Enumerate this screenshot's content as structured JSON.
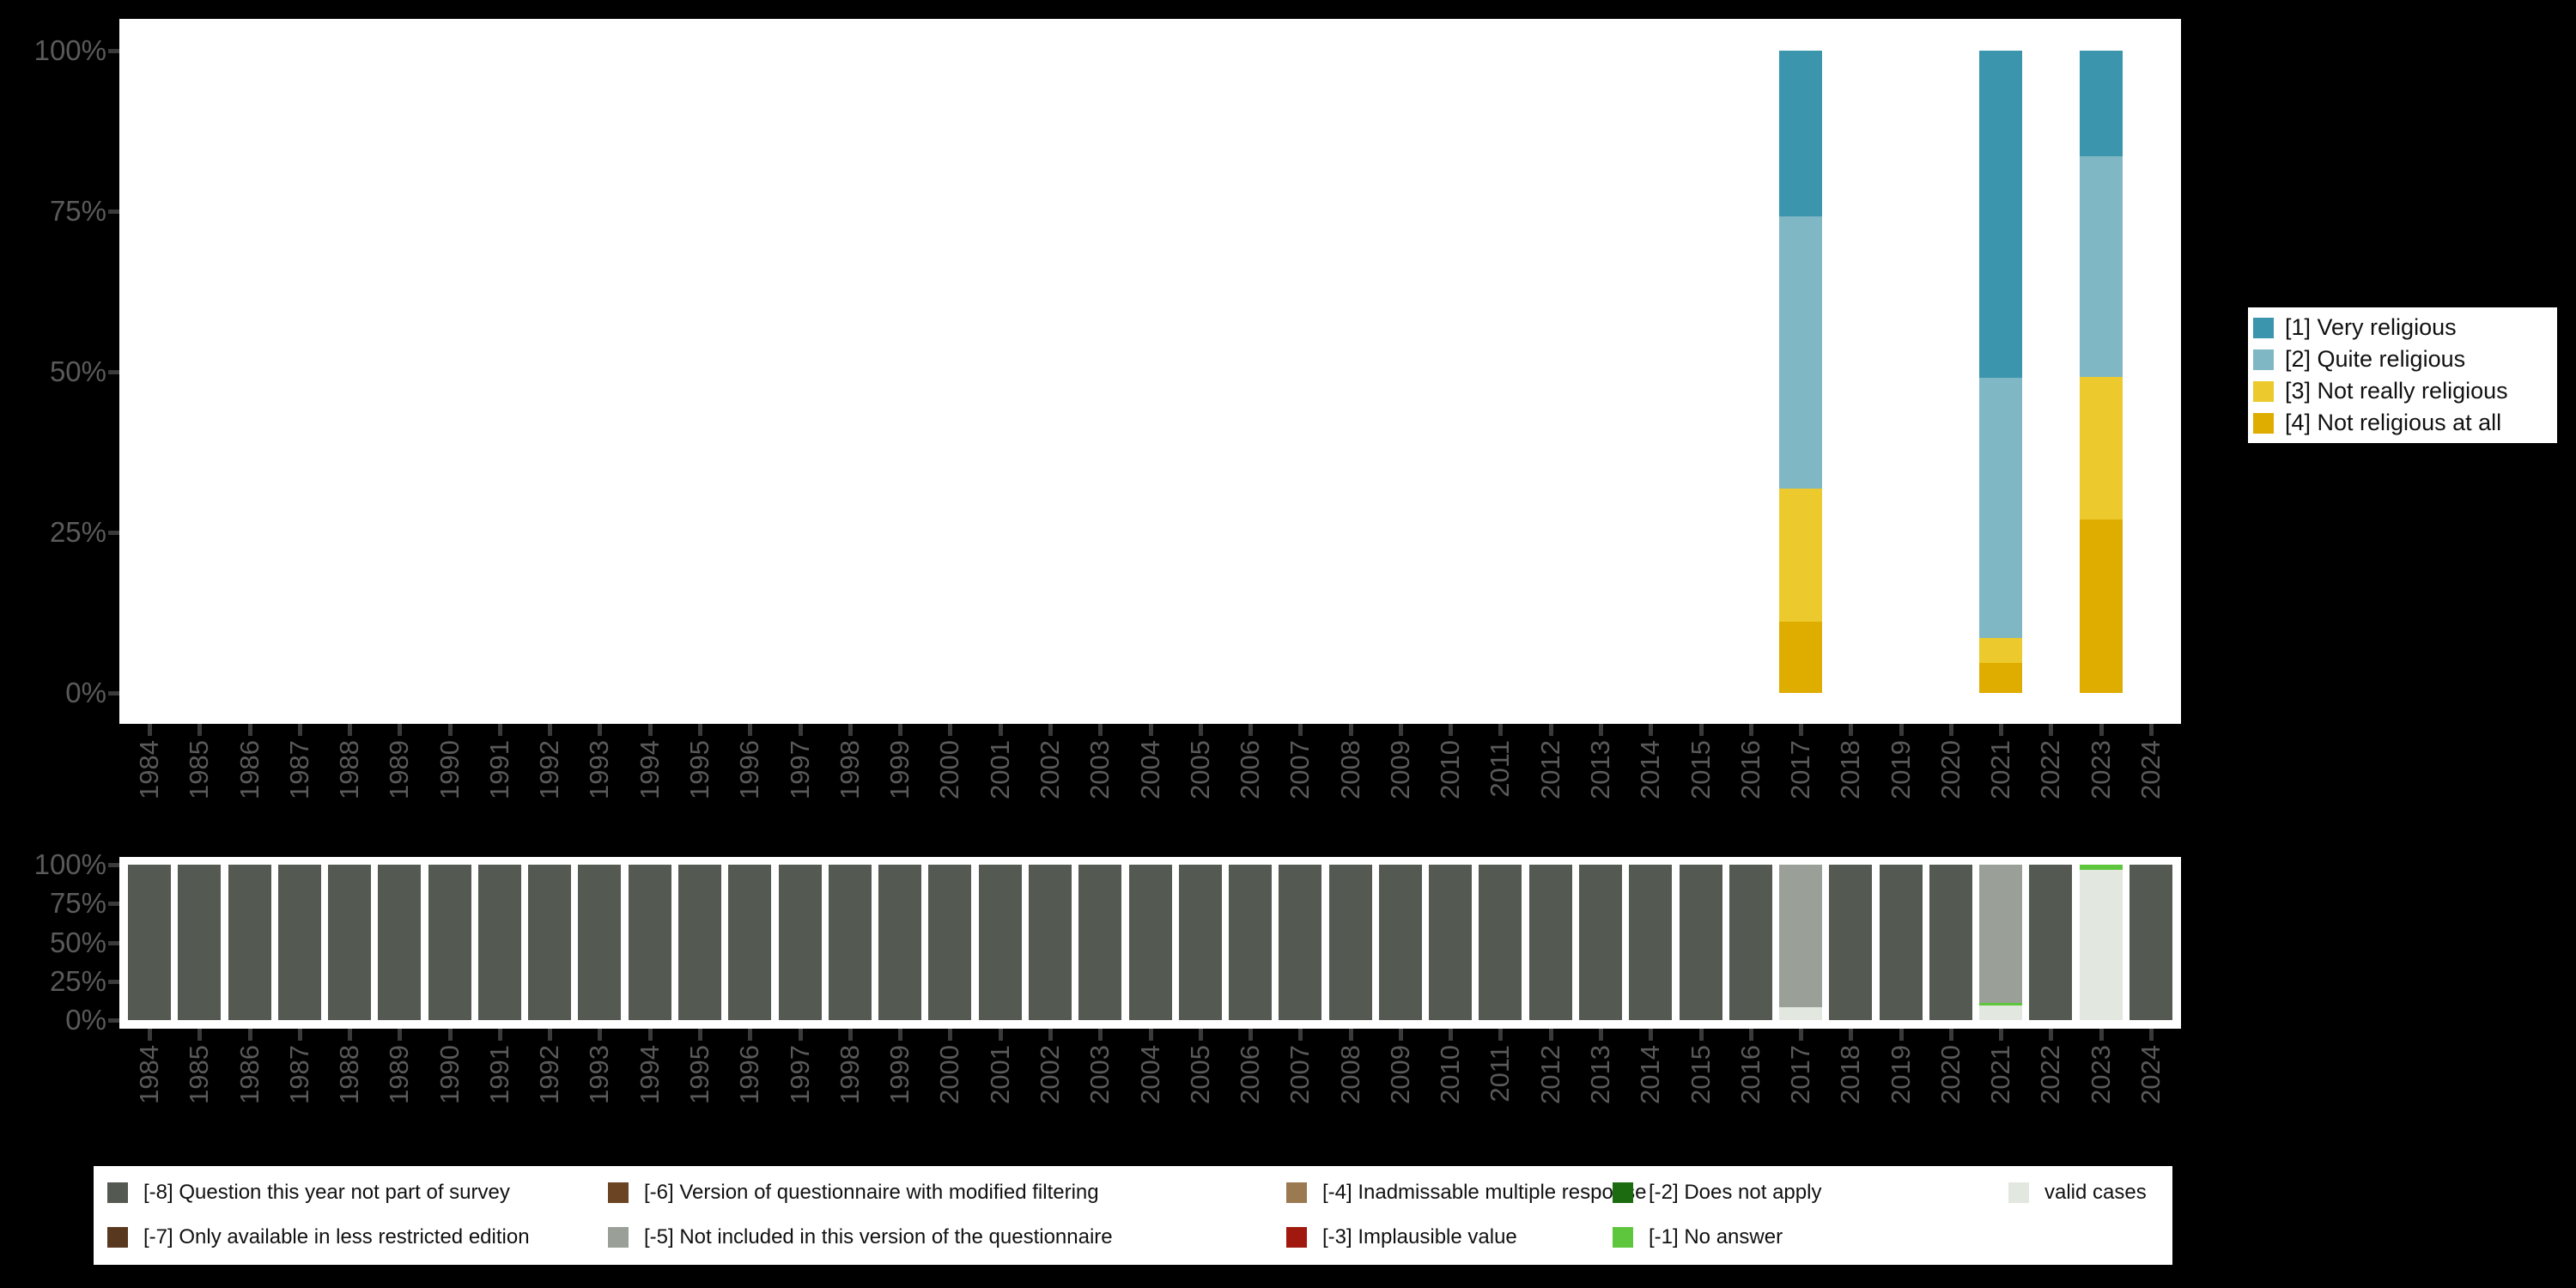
{
  "figure": {
    "background": "#000000",
    "plot_background": "#ffffff",
    "axis_text_color": "#5a5a5a",
    "tick_color": "#3a3a3a",
    "legend_background": "#ffffff",
    "legend_text_color": "#111111"
  },
  "axes": {
    "y_tick_labels": [
      "100%",
      "75%",
      "50%",
      "25%",
      "0%"
    ],
    "x_tick_labels": [
      "1984",
      "1985",
      "1986",
      "1987",
      "1988",
      "1989",
      "1990",
      "1991",
      "1992",
      "1993",
      "1994",
      "1995",
      "1996",
      "1997",
      "1998",
      "1999",
      "2000",
      "2001",
      "2002",
      "2003",
      "2004",
      "2005",
      "2006",
      "2007",
      "2008",
      "2009",
      "2010",
      "2011",
      "2012",
      "2013",
      "2014",
      "2015",
      "2016",
      "2017",
      "2018",
      "2019",
      "2020",
      "2021",
      "2022",
      "2023",
      "2024"
    ]
  },
  "top_legend": {
    "items": [
      {
        "key": "1",
        "label": "[1] Very religious",
        "color": "#3b95ac"
      },
      {
        "key": "2",
        "label": "[2] Quite religious",
        "color": "#7fb7c5"
      },
      {
        "key": "3",
        "label": "[3] Not really religious",
        "color": "#ecca2d"
      },
      {
        "key": "4",
        "label": "[4] Not religious at all",
        "color": "#dfac00"
      }
    ]
  },
  "bottom_legend": {
    "items": [
      {
        "key": "-8",
        "label": "[-8] Question this year not part of survey",
        "color": "#545a52",
        "col": 0,
        "row": 0
      },
      {
        "key": "-7",
        "label": "[-7] Only available in less restricted edition",
        "color": "#58381f",
        "col": 0,
        "row": 1
      },
      {
        "key": "-6",
        "label": "[-6] Version of questionnaire with modified filtering",
        "color": "#6b4423",
        "col": 1,
        "row": 0
      },
      {
        "key": "-5",
        "label": "[-5] Not included in this version of the questionnaire",
        "color": "#9aa098",
        "col": 1,
        "row": 1
      },
      {
        "key": "-4",
        "label": "[-4] Inadmissable multiple response",
        "color": "#9b7a52",
        "col": 2,
        "row": 0
      },
      {
        "key": "-3",
        "label": "[-3] Implausible value",
        "color": "#a1190e",
        "col": 2,
        "row": 1
      },
      {
        "key": "-2",
        "label": "[-2] Does not apply",
        "color": "#1d6b10",
        "col": 3,
        "row": 0
      },
      {
        "key": "-1",
        "label": "[-1] No answer",
        "color": "#5ec63d",
        "col": 3,
        "row": 1
      },
      {
        "key": "valid",
        "label": "valid cases",
        "color": "#e2e8e0",
        "col": 4,
        "row": 0
      }
    ]
  },
  "chart_data": [
    {
      "type": "bar",
      "stacked": true,
      "title": "",
      "xlabel": "",
      "ylabel": "",
      "ylim": [
        0,
        100
      ],
      "y_ticks": [
        "0%",
        "25%",
        "50%",
        "75%",
        "100%"
      ],
      "grid": false,
      "legend_position": "right",
      "categories": [
        "1984",
        "1985",
        "1986",
        "1987",
        "1988",
        "1989",
        "1990",
        "1991",
        "1992",
        "1993",
        "1994",
        "1995",
        "1996",
        "1997",
        "1998",
        "1999",
        "2000",
        "2001",
        "2002",
        "2003",
        "2004",
        "2005",
        "2006",
        "2007",
        "2008",
        "2009",
        "2010",
        "2011",
        "2012",
        "2013",
        "2014",
        "2015",
        "2016",
        "2017",
        "2018",
        "2019",
        "2020",
        "2021",
        "2022",
        "2023",
        "2024"
      ],
      "series": [
        {
          "key": "1",
          "name": "[1] Very religious",
          "color": "#3b95ac",
          "values": [
            0,
            0,
            0,
            0,
            0,
            0,
            0,
            0,
            0,
            0,
            0,
            0,
            0,
            0,
            0,
            0,
            0,
            0,
            0,
            0,
            0,
            0,
            0,
            0,
            0,
            0,
            0,
            0,
            0,
            0,
            0,
            0,
            0,
            25.8,
            0,
            0,
            0,
            50.9,
            0,
            16.5,
            0
          ]
        },
        {
          "key": "2",
          "name": "[2] Quite religious",
          "color": "#7fb7c5",
          "values": [
            0,
            0,
            0,
            0,
            0,
            0,
            0,
            0,
            0,
            0,
            0,
            0,
            0,
            0,
            0,
            0,
            0,
            0,
            0,
            0,
            0,
            0,
            0,
            0,
            0,
            0,
            0,
            0,
            0,
            0,
            0,
            0,
            0,
            42.4,
            0,
            0,
            0,
            40.5,
            0,
            34.3,
            0
          ]
        },
        {
          "key": "3",
          "name": "[3] Not really religious",
          "color": "#ecca2d",
          "values": [
            0,
            0,
            0,
            0,
            0,
            0,
            0,
            0,
            0,
            0,
            0,
            0,
            0,
            0,
            0,
            0,
            0,
            0,
            0,
            0,
            0,
            0,
            0,
            0,
            0,
            0,
            0,
            0,
            0,
            0,
            0,
            0,
            0,
            20.7,
            0,
            0,
            0,
            3.9,
            0,
            22.2,
            0
          ]
        },
        {
          "key": "4",
          "name": "[4] Not religious at all",
          "color": "#dfac00",
          "values": [
            0,
            0,
            0,
            0,
            0,
            0,
            0,
            0,
            0,
            0,
            0,
            0,
            0,
            0,
            0,
            0,
            0,
            0,
            0,
            0,
            0,
            0,
            0,
            0,
            0,
            0,
            0,
            0,
            0,
            0,
            0,
            0,
            0,
            11.1,
            0,
            0,
            0,
            4.7,
            0,
            27,
            0
          ]
        }
      ]
    },
    {
      "type": "bar",
      "stacked": true,
      "title": "",
      "xlabel": "",
      "ylabel": "",
      "ylim": [
        0,
        100
      ],
      "y_ticks": [
        "0%",
        "25%",
        "50%",
        "75%",
        "100%"
      ],
      "grid": false,
      "legend_position": "bottom",
      "categories": [
        "1984",
        "1985",
        "1986",
        "1987",
        "1988",
        "1989",
        "1990",
        "1991",
        "1992",
        "1993",
        "1994",
        "1995",
        "1996",
        "1997",
        "1998",
        "1999",
        "2000",
        "2001",
        "2002",
        "2003",
        "2004",
        "2005",
        "2006",
        "2007",
        "2008",
        "2009",
        "2010",
        "2011",
        "2012",
        "2013",
        "2014",
        "2015",
        "2016",
        "2017",
        "2018",
        "2019",
        "2020",
        "2021",
        "2022",
        "2023",
        "2024"
      ],
      "series": [
        {
          "key": "-8",
          "name": "[-8] Question this year not part of survey",
          "color": "#545a52",
          "values": [
            100,
            100,
            100,
            100,
            100,
            100,
            100,
            100,
            100,
            100,
            100,
            100,
            100,
            100,
            100,
            100,
            100,
            100,
            100,
            100,
            100,
            100,
            100,
            100,
            100,
            100,
            100,
            100,
            100,
            100,
            100,
            100,
            100,
            0,
            100,
            100,
            100,
            0,
            100,
            0,
            100
          ]
        },
        {
          "key": "-7",
          "name": "[-7] Only available in less restricted edition",
          "color": "#58381f",
          "values": [
            0,
            0,
            0,
            0,
            0,
            0,
            0,
            0,
            0,
            0,
            0,
            0,
            0,
            0,
            0,
            0,
            0,
            0,
            0,
            0,
            0,
            0,
            0,
            0,
            0,
            0,
            0,
            0,
            0,
            0,
            0,
            0,
            0,
            0,
            0,
            0,
            0,
            0,
            0,
            0,
            0
          ]
        },
        {
          "key": "-6",
          "name": "[-6] Version of questionnaire with modified filtering",
          "color": "#6b4423",
          "values": [
            0,
            0,
            0,
            0,
            0,
            0,
            0,
            0,
            0,
            0,
            0,
            0,
            0,
            0,
            0,
            0,
            0,
            0,
            0,
            0,
            0,
            0,
            0,
            0,
            0,
            0,
            0,
            0,
            0,
            0,
            0,
            0,
            0,
            0,
            0,
            0,
            0,
            0,
            0,
            0,
            0
          ]
        },
        {
          "key": "-5",
          "name": "[-5] Not included in this version of the questionnaire",
          "color": "#9aa098",
          "values": [
            0,
            0,
            0,
            0,
            0,
            0,
            0,
            0,
            0,
            0,
            0,
            0,
            0,
            0,
            0,
            0,
            0,
            0,
            0,
            0,
            0,
            0,
            0,
            0,
            0,
            0,
            0,
            0,
            0,
            0,
            0,
            0,
            0,
            91.7,
            0,
            0,
            0,
            88.9,
            0,
            0,
            0
          ]
        },
        {
          "key": "-4",
          "name": "[-4] Inadmissable multiple response",
          "color": "#9b7a52",
          "values": [
            0,
            0,
            0,
            0,
            0,
            0,
            0,
            0,
            0,
            0,
            0,
            0,
            0,
            0,
            0,
            0,
            0,
            0,
            0,
            0,
            0,
            0,
            0,
            0,
            0,
            0,
            0,
            0,
            0,
            0,
            0,
            0,
            0,
            0,
            0,
            0,
            0,
            0,
            0,
            0,
            0
          ]
        },
        {
          "key": "-3",
          "name": "[-3] Implausible value",
          "color": "#a1190e",
          "values": [
            0,
            0,
            0,
            0,
            0,
            0,
            0,
            0,
            0,
            0,
            0,
            0,
            0,
            0,
            0,
            0,
            0,
            0,
            0,
            0,
            0,
            0,
            0,
            0,
            0,
            0,
            0,
            0,
            0,
            0,
            0,
            0,
            0,
            0,
            0,
            0,
            0,
            0,
            0,
            0,
            0
          ]
        },
        {
          "key": "-2",
          "name": "[-2] Does not apply",
          "color": "#1d6b10",
          "values": [
            0,
            0,
            0,
            0,
            0,
            0,
            0,
            0,
            0,
            0,
            0,
            0,
            0,
            0,
            0,
            0,
            0,
            0,
            0,
            0,
            0,
            0,
            0,
            0,
            0,
            0,
            0,
            0,
            0,
            0,
            0,
            0,
            0,
            0,
            0,
            0,
            0,
            0,
            0,
            0,
            0
          ]
        },
        {
          "key": "-1",
          "name": "[-1] No answer",
          "color": "#5ec63d",
          "values": [
            0,
            0,
            0,
            0,
            0,
            0,
            0,
            0,
            0,
            0,
            0,
            0,
            0,
            0,
            0,
            0,
            0,
            0,
            0,
            0,
            0,
            0,
            0,
            0,
            0,
            0,
            0,
            0,
            0,
            0,
            0,
            0,
            0,
            0,
            0,
            0,
            0,
            1.7,
            0,
            3.3,
            0
          ]
        },
        {
          "key": "valid",
          "name": "valid cases",
          "color": "#e2e8e0",
          "values": [
            0,
            0,
            0,
            0,
            0,
            0,
            0,
            0,
            0,
            0,
            0,
            0,
            0,
            0,
            0,
            0,
            0,
            0,
            0,
            0,
            0,
            0,
            0,
            0,
            0,
            0,
            0,
            0,
            0,
            0,
            0,
            0,
            0,
            8.3,
            0,
            0,
            0,
            9.4,
            0,
            96.7,
            0
          ]
        }
      ]
    }
  ]
}
